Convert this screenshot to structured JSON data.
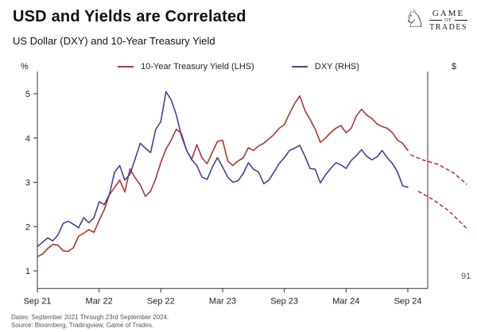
{
  "header": {
    "title": "USD and Yields are Correlated",
    "subtitle": "US Dollar (DXY) and 10-Year Treasury Yield",
    "logo": {
      "name": "Game of Trades",
      "line1": "GAME",
      "line2": "OF",
      "line3": "TRADES",
      "knight_icon": "chess-knight"
    }
  },
  "footer": {
    "line1": "Dates: September 2021 Through 23rd September 2024.",
    "line2": "Source: Bloomberg, Tradingview, Game of Trades."
  },
  "chart_data": {
    "type": "line",
    "title": "USD and Yields are Correlated",
    "x_unit": "half-month steps from September 2021 through 23rd September 2024",
    "x_tick_indices": [
      0,
      12,
      24,
      36,
      48,
      60,
      72
    ],
    "x_tick_labels": [
      "Sep 21",
      "Mar 22",
      "Sep 22",
      "Mar 23",
      "Sep 23",
      "Mar 24",
      "Sep 24"
    ],
    "lhs_axis": {
      "unit": "%",
      "ticks": [
        1,
        2,
        3,
        4,
        5
      ],
      "ylim": [
        0.6,
        5.5
      ]
    },
    "rhs_axis": {
      "unit": "$",
      "visible_tick": "91",
      "ylim": [
        86.8,
        116.8
      ]
    },
    "grid": false,
    "legend_position": "top-center",
    "series": [
      {
        "id": "treasury-yield",
        "name": "10-Year Treasury Yield (LHS)",
        "axis": "lhs",
        "color": "#b43332",
        "values": [
          1.32,
          1.38,
          1.5,
          1.6,
          1.58,
          1.45,
          1.44,
          1.52,
          1.78,
          1.85,
          1.93,
          1.87,
          2.14,
          2.38,
          2.72,
          2.88,
          3.05,
          2.78,
          3.3,
          3.1,
          2.95,
          2.68,
          2.8,
          3.08,
          3.45,
          3.75,
          3.95,
          4.2,
          4.1,
          3.72,
          3.52,
          3.85,
          3.55,
          3.42,
          3.68,
          3.92,
          3.95,
          3.48,
          3.38,
          3.48,
          3.55,
          3.78,
          3.72,
          3.82,
          3.88,
          3.98,
          4.08,
          4.22,
          4.3,
          4.55,
          4.78,
          4.95,
          4.62,
          4.42,
          4.2,
          3.9,
          4.0,
          4.12,
          4.22,
          4.28,
          4.12,
          4.22,
          4.5,
          4.65,
          4.52,
          4.44,
          4.32,
          4.26,
          4.22,
          4.12,
          3.95,
          3.88,
          3.72
        ]
      },
      {
        "id": "dxy",
        "name": "DXY (RHS)",
        "axis": "rhs",
        "color": "#4a3f96",
        "values": [
          92.6,
          93.2,
          93.8,
          93.4,
          94.2,
          95.8,
          96.1,
          95.7,
          95.2,
          96.6,
          95.9,
          96.6,
          98.8,
          98.4,
          99.8,
          102.9,
          103.8,
          101.8,
          102.6,
          104.7,
          106.9,
          106.2,
          105.6,
          108.8,
          109.9,
          114.0,
          112.9,
          110.8,
          107.9,
          105.9,
          104.6,
          103.8,
          102.2,
          101.9,
          103.6,
          104.9,
          103.6,
          102.2,
          101.5,
          101.7,
          102.7,
          104.2,
          103.3,
          102.9,
          101.3,
          101.8,
          102.9,
          104.1,
          104.9,
          105.9,
          106.2,
          106.6,
          105.1,
          103.4,
          103.3,
          101.4,
          102.5,
          103.4,
          104.2,
          103.9,
          103.4,
          104.5,
          105.2,
          106.0,
          105.1,
          104.6,
          105.0,
          105.9,
          104.9,
          104.1,
          102.9,
          101.0,
          100.8
        ]
      }
    ],
    "projections": [
      {
        "id": "yield-projection-upper",
        "color": "#b43332",
        "style": "dashed",
        "axis": "lhs",
        "x": [
          72.5,
          75,
          78,
          81,
          83.5
        ],
        "values": [
          3.62,
          3.5,
          3.4,
          3.2,
          2.95
        ]
      },
      {
        "id": "yield-projection-lower",
        "color": "#b43332",
        "style": "dashed",
        "axis": "lhs",
        "x": [
          74,
          77,
          80,
          83.5
        ],
        "values": [
          2.8,
          2.6,
          2.35,
          1.95
        ]
      }
    ]
  }
}
